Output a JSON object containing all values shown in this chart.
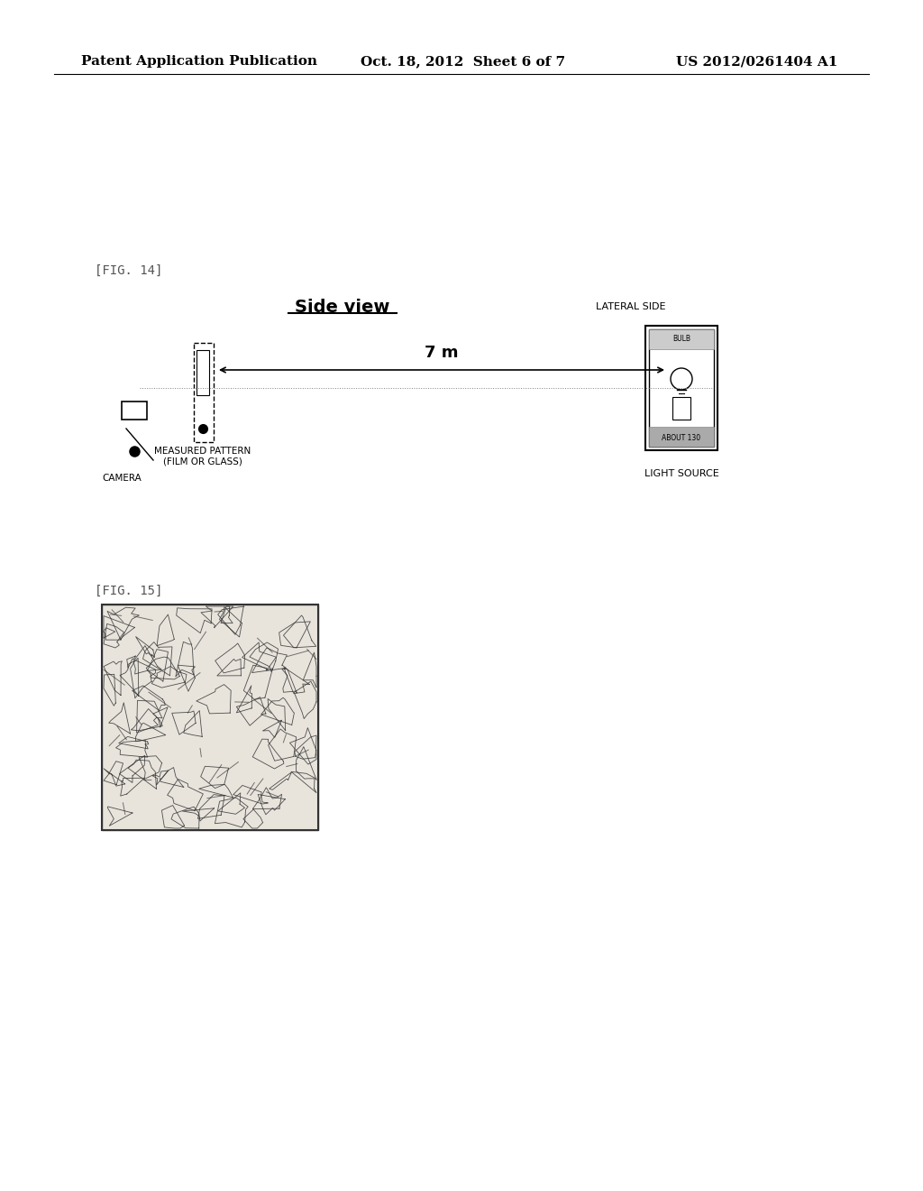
{
  "bg_color": "#ffffff",
  "header_left": "Patent Application Publication",
  "header_mid": "Oct. 18, 2012  Sheet 6 of 7",
  "header_right": "US 2012/0261404 A1",
  "fig14_label": "[FIG. 14]",
  "fig14_title": "Side view",
  "fig14_lateral_label": "LATERAL SIDE",
  "fig14_distance_label": "7 m",
  "fig14_camera_label": "CAMERA",
  "fig14_pattern_label": "MEASURED PATTERN\n(FILM OR GLASS)",
  "fig14_about_label": "ABOUT 130",
  "fig14_bulb_label": "BULB",
  "fig14_lightsource_label": "LIGHT SOURCE",
  "fig15_label": "[FIG. 15]"
}
